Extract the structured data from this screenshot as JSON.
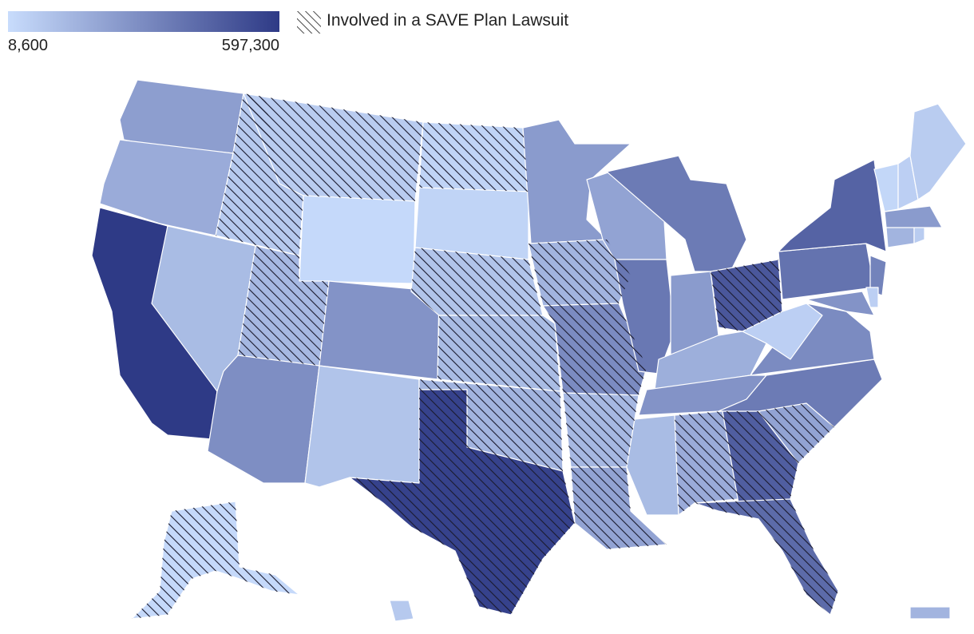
{
  "legend": {
    "min_label": "8,600",
    "max_label": "597,300",
    "color_low": "#c8dcfc",
    "color_high": "#2e3a86",
    "hatch_label": "Involved in a SAVE Plan Lawsuit"
  },
  "states": [
    {
      "code": "WA",
      "value": 0.38,
      "lawsuit": false
    },
    {
      "code": "OR",
      "value": 0.3,
      "lawsuit": false
    },
    {
      "code": "CA",
      "value": 1.0,
      "lawsuit": false
    },
    {
      "code": "NV",
      "value": 0.2,
      "lawsuit": false
    },
    {
      "code": "ID",
      "value": 0.12,
      "lawsuit": true
    },
    {
      "code": "MT",
      "value": 0.1,
      "lawsuit": true
    },
    {
      "code": "WY",
      "value": 0.02,
      "lawsuit": false
    },
    {
      "code": "UT",
      "value": 0.22,
      "lawsuit": true
    },
    {
      "code": "AZ",
      "value": 0.48,
      "lawsuit": false
    },
    {
      "code": "CO",
      "value": 0.45,
      "lawsuit": false
    },
    {
      "code": "NM",
      "value": 0.15,
      "lawsuit": false
    },
    {
      "code": "ND",
      "value": 0.05,
      "lawsuit": true
    },
    {
      "code": "SD",
      "value": 0.05,
      "lawsuit": false
    },
    {
      "code": "NE",
      "value": 0.15,
      "lawsuit": true
    },
    {
      "code": "KS",
      "value": 0.2,
      "lawsuit": true
    },
    {
      "code": "OK",
      "value": 0.25,
      "lawsuit": true
    },
    {
      "code": "TX",
      "value": 0.95,
      "lawsuit": true
    },
    {
      "code": "MN",
      "value": 0.4,
      "lawsuit": false
    },
    {
      "code": "IA",
      "value": 0.25,
      "lawsuit": true
    },
    {
      "code": "MO",
      "value": 0.5,
      "lawsuit": true
    },
    {
      "code": "AR",
      "value": 0.22,
      "lawsuit": true
    },
    {
      "code": "LA",
      "value": 0.35,
      "lawsuit": true
    },
    {
      "code": "WI",
      "value": 0.35,
      "lawsuit": false
    },
    {
      "code": "IL",
      "value": 0.62,
      "lawsuit": false
    },
    {
      "code": "MI",
      "value": 0.6,
      "lawsuit": false
    },
    {
      "code": "IN",
      "value": 0.4,
      "lawsuit": false
    },
    {
      "code": "OH",
      "value": 0.82,
      "lawsuit": true
    },
    {
      "code": "KY",
      "value": 0.28,
      "lawsuit": false
    },
    {
      "code": "TN",
      "value": 0.45,
      "lawsuit": false
    },
    {
      "code": "MS",
      "value": 0.2,
      "lawsuit": false
    },
    {
      "code": "AL",
      "value": 0.3,
      "lawsuit": true
    },
    {
      "code": "GA",
      "value": 0.78,
      "lawsuit": true
    },
    {
      "code": "FL",
      "value": 0.7,
      "lawsuit": true
    },
    {
      "code": "SC",
      "value": 0.35,
      "lawsuit": true
    },
    {
      "code": "NC",
      "value": 0.6,
      "lawsuit": false
    },
    {
      "code": "VA",
      "value": 0.5,
      "lawsuit": false
    },
    {
      "code": "WV",
      "value": 0.08,
      "lawsuit": false
    },
    {
      "code": "PA",
      "value": 0.65,
      "lawsuit": false
    },
    {
      "code": "NY",
      "value": 0.75,
      "lawsuit": false
    },
    {
      "code": "VT",
      "value": 0.03,
      "lawsuit": false
    },
    {
      "code": "NH",
      "value": 0.08,
      "lawsuit": false
    },
    {
      "code": "ME",
      "value": 0.1,
      "lawsuit": false
    },
    {
      "code": "MA",
      "value": 0.4,
      "lawsuit": false
    },
    {
      "code": "CT",
      "value": 0.25,
      "lawsuit": false
    },
    {
      "code": "RI",
      "value": 0.1,
      "lawsuit": false
    },
    {
      "code": "NJ",
      "value": 0.55,
      "lawsuit": false
    },
    {
      "code": "DE",
      "value": 0.08,
      "lawsuit": false
    },
    {
      "code": "MD",
      "value": 0.45,
      "lawsuit": false
    },
    {
      "code": "AK",
      "value": 0.02,
      "lawsuit": true
    },
    {
      "code": "HI",
      "value": 0.12,
      "lawsuit": false
    },
    {
      "code": "PR",
      "value": 0.25,
      "lawsuit": false
    }
  ]
}
